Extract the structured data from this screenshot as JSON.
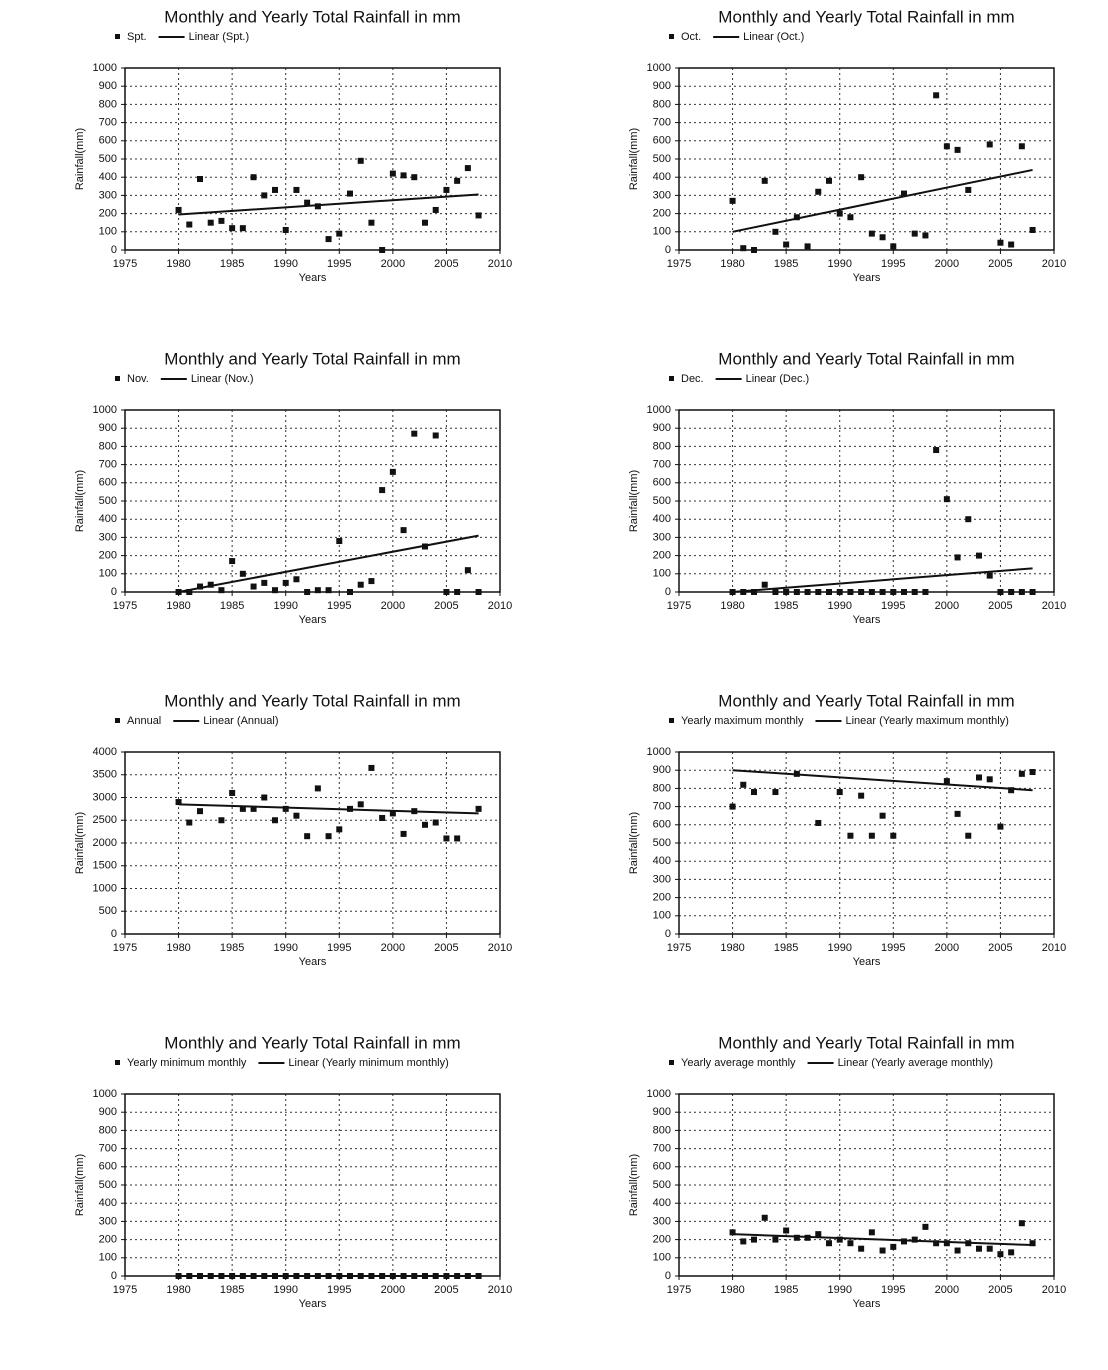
{
  "chart_data": [
    {
      "type": "scatter",
      "title": "Monthly and Yearly Total Rainfall in mm",
      "xlabel": "Years",
      "ylabel": "Rainfall(mm)",
      "x": [
        1980,
        1981,
        1982,
        1983,
        1984,
        1985,
        1986,
        1987,
        1988,
        1989,
        1990,
        1991,
        1992,
        1993,
        1994,
        1995,
        1996,
        1997,
        1998,
        1999,
        2000,
        2001,
        2002,
        2003,
        2004,
        2005,
        2006,
        2007,
        2008
      ],
      "series": [
        {
          "name": "Spt.",
          "color": "#111111",
          "values": [
            220,
            140,
            390,
            150,
            160,
            120,
            120,
            400,
            300,
            330,
            110,
            330,
            260,
            240,
            60,
            90,
            310,
            490,
            150,
            0,
            420,
            410,
            400,
            150,
            220,
            330,
            380,
            450,
            190
          ]
        },
        {
          "name": "Linear (Spt.)",
          "type": "line",
          "color": "#111111",
          "x": [
            1980,
            2008
          ],
          "values": [
            195,
            305
          ]
        }
      ],
      "xlim": [
        1975,
        2010
      ],
      "ylim": [
        0,
        1000
      ],
      "xticks": [
        1975,
        1980,
        1985,
        1990,
        1995,
        2000,
        2005,
        2010
      ],
      "yticks": [
        0,
        100,
        200,
        300,
        400,
        500,
        600,
        700,
        800,
        900,
        1000
      ],
      "grid": true
    },
    {
      "type": "scatter",
      "title": "Monthly and Yearly Total Rainfall in mm",
      "xlabel": "Years",
      "ylabel": "Rainfall(mm)",
      "x": [
        1980,
        1981,
        1982,
        1983,
        1984,
        1985,
        1986,
        1987,
        1988,
        1989,
        1990,
        1991,
        1992,
        1993,
        1994,
        1995,
        1996,
        1997,
        1998,
        1999,
        2000,
        2001,
        2002,
        2003,
        2004,
        2005,
        2006,
        2007,
        2008
      ],
      "series": [
        {
          "name": "Oct.",
          "color": "#111111",
          "values": [
            270,
            10,
            0,
            380,
            100,
            30,
            180,
            20,
            320,
            380,
            200,
            180,
            400,
            90,
            70,
            20,
            310,
            90,
            80,
            850,
            570,
            550,
            330,
            null,
            580,
            40,
            30,
            570,
            110
          ]
        },
        {
          "name": "Linear (Oct.)",
          "type": "line",
          "color": "#111111",
          "x": [
            1980,
            2008
          ],
          "values": [
            100,
            440
          ]
        }
      ],
      "xlim": [
        1975,
        2010
      ],
      "ylim": [
        0,
        1000
      ],
      "xticks": [
        1975,
        1980,
        1985,
        1990,
        1995,
        2000,
        2005,
        2010
      ],
      "yticks": [
        0,
        100,
        200,
        300,
        400,
        500,
        600,
        700,
        800,
        900,
        1000
      ],
      "grid": true
    },
    {
      "type": "scatter",
      "title": "Monthly and Yearly Total Rainfall in mm",
      "xlabel": "Years",
      "ylabel": "Rainfall(mm)",
      "x": [
        1980,
        1981,
        1982,
        1983,
        1984,
        1985,
        1986,
        1987,
        1988,
        1989,
        1990,
        1991,
        1992,
        1993,
        1994,
        1995,
        1996,
        1997,
        1998,
        1999,
        2000,
        2001,
        2002,
        2003,
        2004,
        2005,
        2006,
        2007,
        2008
      ],
      "series": [
        {
          "name": "Nov.",
          "color": "#111111",
          "values": [
            0,
            0,
            30,
            40,
            10,
            170,
            100,
            30,
            50,
            10,
            50,
            70,
            0,
            10,
            10,
            280,
            0,
            40,
            60,
            560,
            660,
            340,
            870,
            250,
            860,
            0,
            0,
            120,
            0
          ]
        },
        {
          "name": "Linear (Nov.)",
          "type": "line",
          "color": "#111111",
          "x": [
            1980,
            2008
          ],
          "values": [
            0,
            310
          ]
        }
      ],
      "xlim": [
        1975,
        2010
      ],
      "ylim": [
        0,
        1000
      ],
      "xticks": [
        1975,
        1980,
        1985,
        1990,
        1995,
        2000,
        2005,
        2010
      ],
      "yticks": [
        0,
        100,
        200,
        300,
        400,
        500,
        600,
        700,
        800,
        900,
        1000
      ],
      "grid": true
    },
    {
      "type": "scatter",
      "title": "Monthly and Yearly Total Rainfall in mm",
      "xlabel": "Years",
      "ylabel": "Rainfall(mm)",
      "x": [
        1980,
        1981,
        1982,
        1983,
        1984,
        1985,
        1986,
        1987,
        1988,
        1989,
        1990,
        1991,
        1992,
        1993,
        1994,
        1995,
        1996,
        1997,
        1998,
        1999,
        2000,
        2001,
        2002,
        2003,
        2004,
        2005,
        2006,
        2007,
        2008
      ],
      "series": [
        {
          "name": "Dec.",
          "color": "#111111",
          "values": [
            0,
            0,
            0,
            40,
            0,
            0,
            0,
            0,
            0,
            0,
            0,
            0,
            0,
            0,
            0,
            0,
            0,
            0,
            0,
            780,
            510,
            190,
            400,
            200,
            90,
            0,
            0,
            0,
            0
          ]
        },
        {
          "name": "Linear (Dec.)",
          "type": "line",
          "color": "#111111",
          "x": [
            1980,
            2008
          ],
          "values": [
            0,
            130
          ]
        }
      ],
      "xlim": [
        1975,
        2010
      ],
      "ylim": [
        0,
        1000
      ],
      "xticks": [
        1975,
        1980,
        1985,
        1990,
        1995,
        2000,
        2005,
        2010
      ],
      "yticks": [
        0,
        100,
        200,
        300,
        400,
        500,
        600,
        700,
        800,
        900,
        1000
      ],
      "grid": true
    },
    {
      "type": "scatter",
      "title": "Monthly and Yearly Total Rainfall in mm",
      "xlabel": "Years",
      "ylabel": "Rainfall(mm)",
      "x": [
        1980,
        1981,
        1982,
        1983,
        1984,
        1985,
        1986,
        1987,
        1988,
        1989,
        1990,
        1991,
        1992,
        1993,
        1994,
        1995,
        1996,
        1997,
        1998,
        1999,
        2000,
        2001,
        2002,
        2003,
        2004,
        2005,
        2006,
        2007,
        2008
      ],
      "series": [
        {
          "name": "Annual",
          "color": "#111111",
          "values": [
            2900,
            2450,
            2700,
            null,
            2500,
            3100,
            2750,
            2750,
            3000,
            2500,
            2750,
            2600,
            2150,
            3200,
            2150,
            2300,
            2750,
            2850,
            3650,
            2550,
            2650,
            2200,
            2700,
            2400,
            2450,
            2100,
            2100,
            null,
            2750
          ]
        },
        {
          "name": "Linear (Annual)",
          "type": "line",
          "color": "#111111",
          "x": [
            1980,
            2008
          ],
          "values": [
            2850,
            2650
          ]
        }
      ],
      "xlim": [
        1975,
        2010
      ],
      "ylim": [
        0,
        4000
      ],
      "xticks": [
        1975,
        1980,
        1985,
        1990,
        1995,
        2000,
        2005,
        2010
      ],
      "yticks": [
        0,
        500,
        1000,
        1500,
        2000,
        2500,
        3000,
        3500,
        4000
      ],
      "grid": true
    },
    {
      "type": "scatter",
      "title": "Monthly and Yearly Total Rainfall in mm",
      "xlabel": "Years",
      "ylabel": "Rainfall(mm)",
      "x": [
        1980,
        1981,
        1982,
        1983,
        1984,
        1985,
        1986,
        1987,
        1988,
        1989,
        1990,
        1991,
        1992,
        1993,
        1994,
        1995,
        1996,
        1997,
        1998,
        1999,
        2000,
        2001,
        2002,
        2003,
        2004,
        2005,
        2006,
        2007,
        2008
      ],
      "series": [
        {
          "name": "Yearly maximum monthly",
          "color": "#111111",
          "values": [
            700,
            820,
            780,
            null,
            780,
            null,
            880,
            null,
            610,
            null,
            780,
            540,
            760,
            540,
            650,
            540,
            null,
            null,
            null,
            null,
            840,
            660,
            540,
            860,
            850,
            590,
            790,
            880,
            890
          ]
        },
        {
          "name": "Linear (Yearly maximum monthly)",
          "type": "line",
          "color": "#111111",
          "x": [
            1980,
            2008
          ],
          "values": [
            900,
            790
          ]
        }
      ],
      "xlim": [
        1975,
        2010
      ],
      "ylim": [
        0,
        1000
      ],
      "xticks": [
        1975,
        1980,
        1985,
        1990,
        1995,
        2000,
        2005,
        2010
      ],
      "yticks": [
        0,
        100,
        200,
        300,
        400,
        500,
        600,
        700,
        800,
        900,
        1000
      ],
      "grid": true
    },
    {
      "type": "scatter",
      "title": "Monthly and Yearly Total Rainfall in mm",
      "xlabel": "Years",
      "ylabel": "Rainfall(mm)",
      "x": [
        1980,
        1981,
        1982,
        1983,
        1984,
        1985,
        1986,
        1987,
        1988,
        1989,
        1990,
        1991,
        1992,
        1993,
        1994,
        1995,
        1996,
        1997,
        1998,
        1999,
        2000,
        2001,
        2002,
        2003,
        2004,
        2005,
        2006,
        2007,
        2008
      ],
      "series": [
        {
          "name": "Yearly minimum monthly",
          "color": "#111111",
          "values": [
            0,
            0,
            0,
            0,
            0,
            0,
            0,
            0,
            0,
            0,
            0,
            0,
            0,
            0,
            0,
            0,
            0,
            0,
            0,
            0,
            0,
            0,
            0,
            0,
            0,
            0,
            0,
            0,
            0
          ]
        },
        {
          "name": "Linear (Yearly minimum monthly)",
          "type": "line",
          "color": "#111111",
          "x": [
            1980,
            2008
          ],
          "values": [
            0,
            0
          ]
        }
      ],
      "xlim": [
        1975,
        2010
      ],
      "ylim": [
        0,
        1000
      ],
      "xticks": [
        1975,
        1980,
        1985,
        1990,
        1995,
        2000,
        2005,
        2010
      ],
      "yticks": [
        0,
        100,
        200,
        300,
        400,
        500,
        600,
        700,
        800,
        900,
        1000
      ],
      "grid": true
    },
    {
      "type": "scatter",
      "title": "Monthly and Yearly Total Rainfall in mm",
      "xlabel": "Years",
      "ylabel": "Rainfall(mm)",
      "x": [
        1980,
        1981,
        1982,
        1983,
        1984,
        1985,
        1986,
        1987,
        1988,
        1989,
        1990,
        1991,
        1992,
        1993,
        1994,
        1995,
        1996,
        1997,
        1998,
        1999,
        2000,
        2001,
        2002,
        2003,
        2004,
        2005,
        2006,
        2007,
        2008
      ],
      "series": [
        {
          "name": "Yearly average monthly",
          "color": "#111111",
          "values": [
            240,
            190,
            200,
            320,
            200,
            250,
            210,
            210,
            230,
            180,
            200,
            180,
            150,
            240,
            140,
            160,
            190,
            200,
            270,
            180,
            180,
            140,
            180,
            150,
            150,
            120,
            130,
            290,
            180
          ]
        },
        {
          "name": "Linear (Yearly average monthly)",
          "type": "line",
          "color": "#111111",
          "x": [
            1980,
            2008
          ],
          "values": [
            230,
            170
          ]
        }
      ],
      "xlim": [
        1975,
        2010
      ],
      "ylim": [
        0,
        1000
      ],
      "xticks": [
        1975,
        1980,
        1985,
        1990,
        1995,
        2000,
        2005,
        2010
      ],
      "yticks": [
        0,
        100,
        200,
        300,
        400,
        500,
        600,
        700,
        800,
        900,
        1000
      ],
      "grid": true
    }
  ]
}
